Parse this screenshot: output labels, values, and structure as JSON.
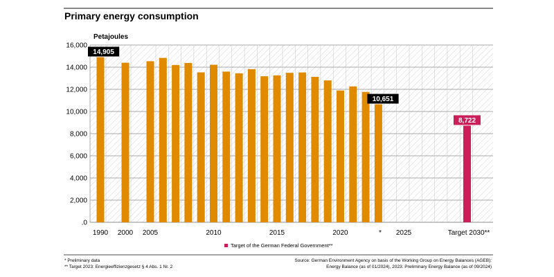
{
  "title": "Primary energy consumption",
  "colors": {
    "bar": "#e08a00",
    "target": "#cc1f5a",
    "label_bg": "#000000",
    "label_text": "#ffffff",
    "grid": "#8c8c8c",
    "hatch": "#d6d6d6"
  },
  "chart_data": {
    "type": "bar",
    "title": "Primary energy consumption",
    "ylabel": "Petajoules",
    "xlabel": "",
    "ylim": [
      0,
      16000
    ],
    "yticks": [
      0,
      2000,
      4000,
      6000,
      8000,
      10000,
      12000,
      14000,
      16000
    ],
    "ytick_labels": [
      ".0",
      "2,000",
      "4,000",
      "6,000",
      "8,000",
      "10,000",
      "12,000",
      "14,000",
      "16,000"
    ],
    "grid": true,
    "x_tick_labels": [
      "1990",
      "2000",
      "2005",
      "2010",
      "2015",
      "2020",
      "*",
      "2025",
      "Target 2030**"
    ],
    "series": [
      {
        "name": "Primary energy consumption",
        "points": [
          {
            "x": "1990",
            "value": 14905
          },
          {
            "x": "2000",
            "value": 14401
          },
          {
            "x": "2005",
            "value": 14538
          },
          {
            "x": "2006",
            "value": 14837
          },
          {
            "x": "2007",
            "value": 14197
          },
          {
            "x": "2008",
            "value": 14380
          },
          {
            "x": "2009",
            "value": 13531
          },
          {
            "x": "2010",
            "value": 14217
          },
          {
            "x": "2011",
            "value": 13599
          },
          {
            "x": "2012",
            "value": 13447
          },
          {
            "x": "2013",
            "value": 13822
          },
          {
            "x": "2014",
            "value": 13180
          },
          {
            "x": "2015",
            "value": 13262
          },
          {
            "x": "2016",
            "value": 13491
          },
          {
            "x": "2017",
            "value": 13523
          },
          {
            "x": "2018",
            "value": 13129
          },
          {
            "x": "2019",
            "value": 12805
          },
          {
            "x": "2020",
            "value": 11895
          },
          {
            "x": "2021",
            "value": 12265
          },
          {
            "x": "2022",
            "value": 11769
          },
          {
            "x": "2023",
            "value": 10651
          }
        ]
      },
      {
        "name": "Target of the German Federal Government**",
        "points": [
          {
            "x": "2030",
            "value": 8722
          }
        ]
      }
    ],
    "data_labels": [
      {
        "x": "1990",
        "text": "14,905"
      },
      {
        "x": "2023",
        "text": "10,651"
      },
      {
        "x": "2030",
        "text": "8,722"
      }
    ],
    "legend": [
      {
        "label": "Target of the German Federal Government**",
        "color": "#cc1f5a"
      }
    ],
    "legend_position": "bottom"
  },
  "footnotes": {
    "left": [
      "* Preliminary data",
      "** Target 2023: Energieeffizienzgesetz § 4 Abs. 1 Nr. 2"
    ],
    "right": [
      "Source: German Environment Agency on basis of the Working Group on Energy Balances (AGEB):",
      "Energy Balance (as of 01/2024), 2023: Preliminary Energy Balance (as of 09/2024)"
    ]
  }
}
